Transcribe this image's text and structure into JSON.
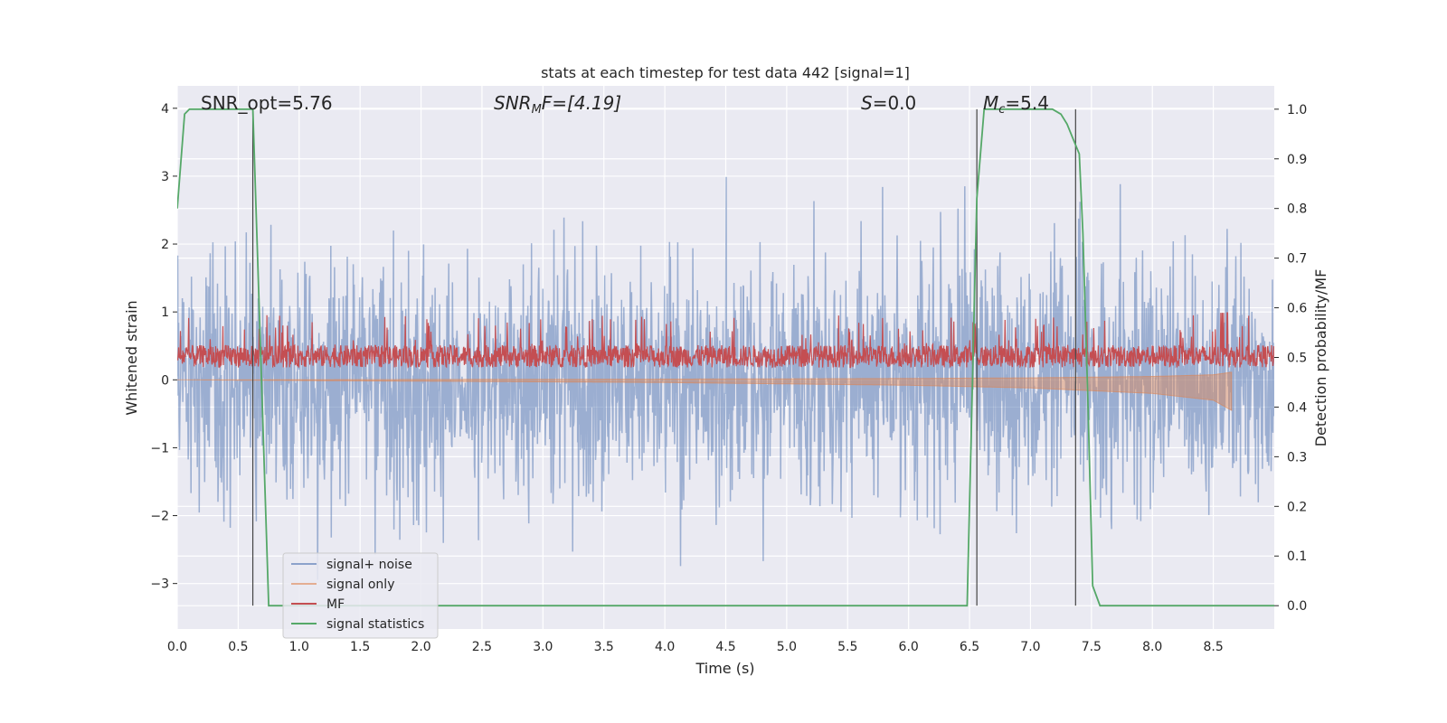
{
  "chart_data": {
    "type": "line",
    "title": "stats at each timestep for test data 442 [signal=1]",
    "xlabel": "Time (s)",
    "ylabel": "Whitened strain",
    "y2label": "Detection probability/MF",
    "xlim": [
      0,
      9.0
    ],
    "ylim": [
      -3.67,
      4.33
    ],
    "y2lim": [
      -0.047,
      1.047
    ],
    "xticks": [
      "0.0",
      "0.5",
      "1.0",
      "1.5",
      "2.0",
      "2.5",
      "3.0",
      "3.5",
      "4.0",
      "4.5",
      "5.0",
      "5.5",
      "6.0",
      "6.5",
      "7.0",
      "7.5",
      "8.0",
      "8.5"
    ],
    "yticks": [
      "4",
      "3",
      "2",
      "1",
      "0",
      "−1",
      "−2",
      "−3"
    ],
    "y2ticks": [
      "1.0",
      "0.9",
      "0.8",
      "0.7",
      "0.6",
      "0.5",
      "0.4",
      "0.3",
      "0.2",
      "0.1",
      "0.0"
    ],
    "grid": true,
    "legend_position": "lower-left",
    "annotations": {
      "snr_opt": "SNR_opt=5.76",
      "snr_mf_prefix": "SNR",
      "snr_mf_sub": "M",
      "snr_mf_suffix": "F=[4.19]",
      "s_italic": "S",
      "s_value": "=0.0",
      "mc_italic": "M",
      "mc_sub": "c",
      "mc_value": "=5.4"
    },
    "series": [
      {
        "name": "signal+ noise",
        "color": "#4c72b0",
        "style": "noise band, amplitude ~1 with spikes up to 3.6"
      },
      {
        "name": "signal only",
        "color": "#dd8452",
        "x": [
          0,
          1,
          2,
          3,
          4,
          5,
          6,
          7,
          8,
          8.5,
          8.65
        ],
        "y": [
          0.0,
          0.01,
          0.02,
          0.03,
          0.04,
          0.06,
          0.08,
          0.12,
          0.2,
          0.3,
          0.45
        ]
      },
      {
        "name": "MF",
        "color": "#c44e52",
        "baseline_y2": 0.5
      },
      {
        "name": "signal statistics",
        "color": "#55a868",
        "x": [
          0.0,
          0.06,
          0.1,
          0.6,
          0.62,
          0.75,
          6.48,
          6.56,
          6.62,
          7.18,
          7.25,
          7.3,
          7.35,
          7.4,
          7.43,
          7.47,
          7.51,
          7.57,
          9.0
        ],
        "y2": [
          0.8,
          0.99,
          1.0,
          1.0,
          1.0,
          0.0,
          0.0,
          0.82,
          1.0,
          1.0,
          0.99,
          0.97,
          0.94,
          0.91,
          0.75,
          0.42,
          0.04,
          0.0,
          0.0
        ]
      }
    ],
    "vlines": [
      0.62,
      6.56,
      7.37
    ]
  }
}
